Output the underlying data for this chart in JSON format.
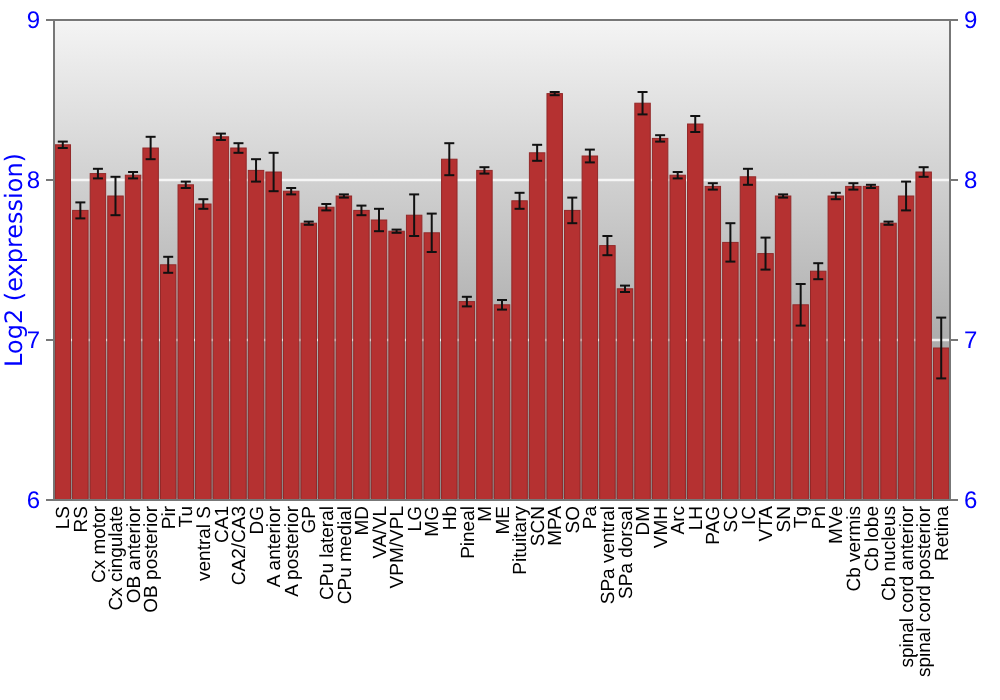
{
  "chart_data": {
    "type": "bar",
    "ylabel": "Log2 (expression)",
    "categories": [
      "LS",
      "RS",
      "Cx motor",
      "Cx cingulate",
      "OB anterior",
      "OB posterior",
      "Pir",
      "Tu",
      "ventral S",
      "CA1",
      "CA2/CA3",
      "DG",
      "A anterior",
      "A posterior",
      "GP",
      "CPu lateral",
      "CPu medial",
      "MD",
      "VA/VL",
      "VPM/VPL",
      "LG",
      "MG",
      "Hb",
      "Pineal",
      "M",
      "ME",
      "Pituitary",
      "SCN",
      "MPA",
      "SO",
      "Pa",
      "SPa ventral",
      "SPa dorsal",
      "DM",
      "VMH",
      "Arc",
      "LH",
      "PAG",
      "SC",
      "IC",
      "VTA",
      "SN",
      "Tg",
      "Pn",
      "MVe",
      "Cb vermis",
      "Cb lobe",
      "Cb nucleus",
      "spinal cord anterior",
      "spinal cord posterior",
      "Retina"
    ],
    "series": [
      {
        "color": "#b53131",
        "values": [
          8.22,
          7.81,
          8.04,
          7.9,
          8.03,
          8.2,
          7.47,
          7.97,
          7.85,
          8.27,
          8.2,
          8.06,
          8.05,
          7.93,
          7.73,
          7.83,
          7.9,
          7.81,
          7.75,
          7.68,
          7.78,
          7.67,
          8.13,
          7.24,
          8.06,
          7.22,
          7.87,
          8.17,
          8.54,
          7.81,
          8.15,
          7.59,
          7.32,
          8.48,
          8.26,
          8.03,
          8.35,
          7.96,
          7.61,
          8.02,
          7.54,
          7.9,
          7.22,
          7.43,
          7.9,
          7.96,
          7.96,
          7.73,
          7.9,
          8.05,
          6.95
        ],
        "errors": [
          0.02,
          0.05,
          0.03,
          0.12,
          0.02,
          0.07,
          0.05,
          0.02,
          0.03,
          0.02,
          0.03,
          0.07,
          0.12,
          0.02,
          0.01,
          0.02,
          0.01,
          0.03,
          0.07,
          0.01,
          0.13,
          0.12,
          0.1,
          0.03,
          0.02,
          0.03,
          0.05,
          0.05,
          0.01,
          0.08,
          0.04,
          0.06,
          0.02,
          0.07,
          0.02,
          0.02,
          0.05,
          0.02,
          0.12,
          0.05,
          0.1,
          0.01,
          0.13,
          0.05,
          0.02,
          0.02,
          0.01,
          0.01,
          0.09,
          0.03,
          0.19
        ]
      }
    ],
    "ylim": [
      6,
      9
    ],
    "yticks": [
      6,
      7,
      8,
      9
    ],
    "y2lim": [
      6,
      9
    ],
    "y2ticks": [
      6,
      7,
      8,
      9
    ],
    "grid": "y"
  }
}
